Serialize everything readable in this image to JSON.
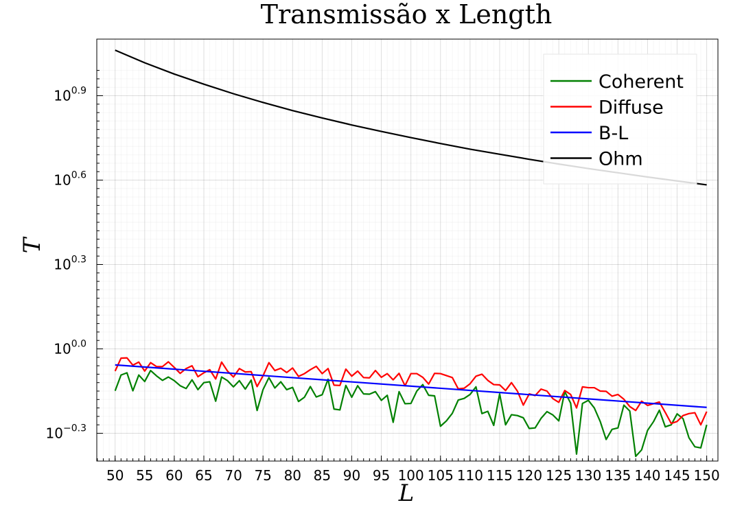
{
  "chart_data": {
    "type": "line",
    "title": "Transmissão x Length",
    "xlabel": "L",
    "ylabel": "T",
    "x_range": [
      50,
      150
    ],
    "xlim": [
      46.9,
      151.9
    ],
    "y_scale": "log10",
    "ylim_log10": [
      -0.3,
      1.0
    ],
    "x_ticks": [
      50,
      55,
      60,
      65,
      70,
      75,
      80,
      85,
      90,
      95,
      100,
      105,
      110,
      115,
      120,
      125,
      130,
      135,
      140,
      145,
      150
    ],
    "y_ticks": [
      {
        "base": "10",
        "exp": "−0.3",
        "log10": -0.3
      },
      {
        "base": "10",
        "exp": "0.0",
        "log10": 0.0
      },
      {
        "base": "10",
        "exp": "0.3",
        "log10": 0.3
      },
      {
        "base": "10",
        "exp": "0.6",
        "log10": 0.6
      },
      {
        "base": "10",
        "exp": "0.9",
        "log10": 0.9
      }
    ],
    "grid": true,
    "legend_position": "top-right",
    "series": [
      {
        "name": "Coherent",
        "color": "#008000",
        "y_log10": [
          -0.149,
          -0.093,
          -0.085,
          -0.149,
          -0.093,
          -0.116,
          -0.077,
          -0.096,
          -0.112,
          -0.1,
          -0.113,
          -0.131,
          -0.141,
          -0.11,
          -0.145,
          -0.12,
          -0.117,
          -0.186,
          -0.1,
          -0.113,
          -0.135,
          -0.113,
          -0.143,
          -0.111,
          -0.219,
          -0.145,
          -0.102,
          -0.139,
          -0.117,
          -0.145,
          -0.137,
          -0.187,
          -0.172,
          -0.134,
          -0.171,
          -0.163,
          -0.108,
          -0.214,
          -0.217,
          -0.13,
          -0.172,
          -0.131,
          -0.16,
          -0.161,
          -0.152,
          -0.183,
          -0.165,
          -0.261,
          -0.152,
          -0.195,
          -0.194,
          -0.15,
          -0.127,
          -0.165,
          -0.167,
          -0.275,
          -0.256,
          -0.229,
          -0.182,
          -0.176,
          -0.162,
          -0.135,
          -0.23,
          -0.222,
          -0.272,
          -0.16,
          -0.27,
          -0.234,
          -0.237,
          -0.245,
          -0.283,
          -0.281,
          -0.247,
          -0.223,
          -0.235,
          -0.256,
          -0.152,
          -0.193,
          -0.374,
          -0.194,
          -0.183,
          -0.21,
          -0.258,
          -0.322,
          -0.286,
          -0.281,
          -0.2,
          -0.221,
          -0.382,
          -0.359,
          -0.29,
          -0.259,
          -0.218,
          -0.277,
          -0.27,
          -0.231,
          -0.248,
          -0.316,
          -0.348,
          -0.352,
          -0.27
        ]
      },
      {
        "name": "Diffuse",
        "color": "#ff0000",
        "y_log10": [
          -0.079,
          -0.033,
          -0.032,
          -0.058,
          -0.047,
          -0.079,
          -0.049,
          -0.063,
          -0.063,
          -0.046,
          -0.066,
          -0.087,
          -0.07,
          -0.06,
          -0.099,
          -0.085,
          -0.074,
          -0.107,
          -0.047,
          -0.079,
          -0.1,
          -0.07,
          -0.082,
          -0.081,
          -0.134,
          -0.096,
          -0.049,
          -0.077,
          -0.069,
          -0.084,
          -0.068,
          -0.098,
          -0.088,
          -0.074,
          -0.062,
          -0.088,
          -0.07,
          -0.129,
          -0.13,
          -0.072,
          -0.097,
          -0.079,
          -0.102,
          -0.103,
          -0.077,
          -0.101,
          -0.088,
          -0.11,
          -0.087,
          -0.131,
          -0.088,
          -0.088,
          -0.101,
          -0.125,
          -0.087,
          -0.088,
          -0.095,
          -0.102,
          -0.142,
          -0.14,
          -0.124,
          -0.097,
          -0.09,
          -0.112,
          -0.127,
          -0.128,
          -0.148,
          -0.12,
          -0.15,
          -0.2,
          -0.16,
          -0.166,
          -0.143,
          -0.15,
          -0.177,
          -0.19,
          -0.148,
          -0.162,
          -0.21,
          -0.135,
          -0.138,
          -0.138,
          -0.15,
          -0.151,
          -0.168,
          -0.162,
          -0.179,
          -0.205,
          -0.219,
          -0.186,
          -0.201,
          -0.195,
          -0.189,
          -0.226,
          -0.265,
          -0.258,
          -0.237,
          -0.23,
          -0.227,
          -0.27,
          -0.223
        ]
      },
      {
        "name": "B-L",
        "color": "#0000ff",
        "x": [
          50,
          150
        ],
        "y_log10": [
          -0.057,
          -0.208
        ]
      },
      {
        "name": "Ohm",
        "color": "#000000",
        "x": [
          50,
          55,
          60,
          65,
          70,
          75,
          80,
          85,
          90,
          95,
          100,
          105,
          110,
          115,
          120,
          125,
          130,
          135,
          140,
          145,
          150
        ],
        "y_log10": [
          1.062,
          1.017,
          0.977,
          0.941,
          0.907,
          0.876,
          0.847,
          0.821,
          0.796,
          0.773,
          0.751,
          0.73,
          0.71,
          0.692,
          0.674,
          0.657,
          0.641,
          0.626,
          0.611,
          0.597,
          0.583
        ]
      }
    ]
  }
}
